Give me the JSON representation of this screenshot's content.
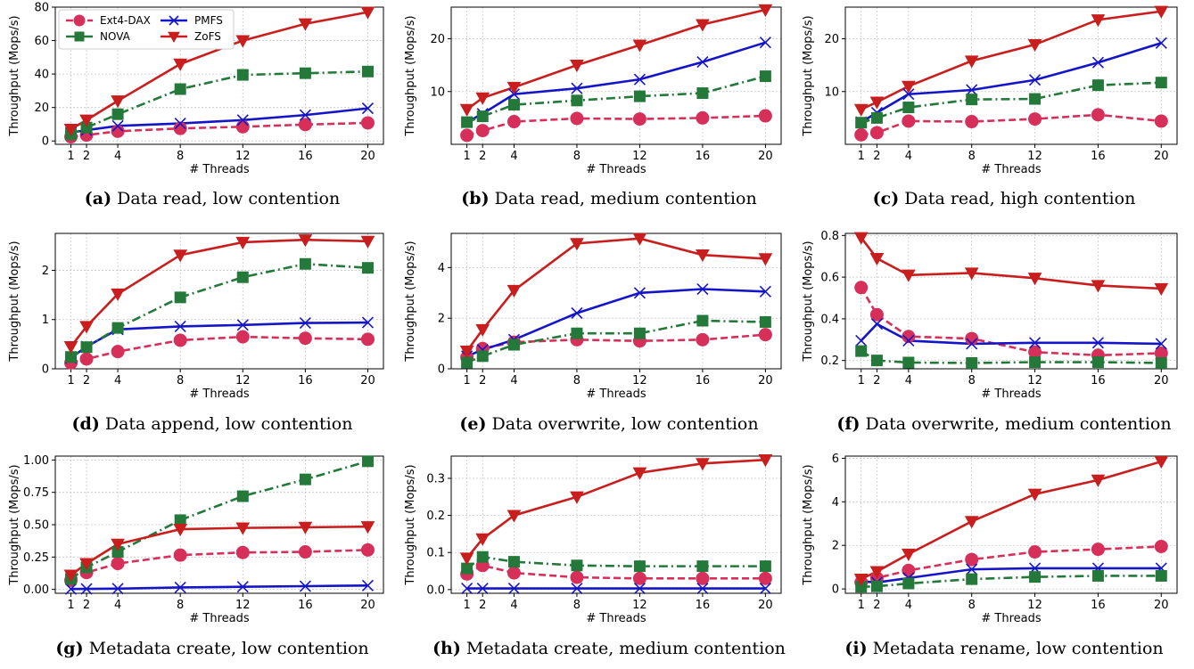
{
  "figure": {
    "series_styles": {
      "Ext4-DAX": {
        "color": "#d6305a",
        "marker": "circle",
        "dash": "8,4",
        "marker_size": 7
      },
      "PMFS": {
        "color": "#1515c8",
        "marker": "x",
        "dash": "",
        "marker_size": 6
      },
      "NOVA": {
        "color": "#24793a",
        "marker": "square",
        "dash": "10,4,2,4",
        "marker_size": 6
      },
      "ZoFS": {
        "color": "#c81e1e",
        "marker": "triangle-down",
        "dash": "",
        "marker_size": 7
      }
    }
  },
  "chart_data": [
    {
      "type": "line",
      "tag": "(a)",
      "caption": "Data read, low contention",
      "xlabel": "# Threads",
      "ylabel": "Throughput (Mops/s)",
      "x": [
        1,
        2,
        4,
        8,
        12,
        16,
        20
      ],
      "xticks": [
        "1",
        "2",
        "4",
        "8",
        "12",
        "16",
        "20"
      ],
      "ylim": [
        -2,
        80
      ],
      "yticks": [
        0,
        20,
        40,
        60,
        80
      ],
      "yticklabels": [
        "0",
        "20",
        "40",
        "60",
        "80"
      ],
      "grid": true,
      "legend": {
        "position": "top-left",
        "columns": 2,
        "entries": [
          "Ext4-DAX",
          "PMFS",
          "NOVA",
          "ZoFS"
        ]
      },
      "series": [
        {
          "name": "Ext4-DAX",
          "values": [
            2.5,
            3.5,
            5.8,
            7.5,
            8.5,
            9.8,
            10.8
          ]
        },
        {
          "name": "PMFS",
          "values": [
            5,
            6.5,
            9,
            10.5,
            12.5,
            15.5,
            19.5
          ]
        },
        {
          "name": "NOVA",
          "values": [
            4,
            8,
            16,
            31,
            39.5,
            40.5,
            41.5
          ]
        },
        {
          "name": "ZoFS",
          "values": [
            7,
            12.5,
            24,
            46,
            60,
            70,
            77
          ]
        }
      ]
    },
    {
      "type": "line",
      "tag": "(b)",
      "caption": "Data read, medium contention",
      "xlabel": "# Threads",
      "ylabel": "Throughput (Mops/s)",
      "x": [
        1,
        2,
        4,
        8,
        12,
        16,
        20
      ],
      "xticks": [
        "1",
        "2",
        "4",
        "8",
        "12",
        "16",
        "20"
      ],
      "ylim": [
        0,
        26
      ],
      "yticks": [
        10,
        20
      ],
      "yticklabels": [
        "10",
        "20"
      ],
      "grid": true,
      "series": [
        {
          "name": "Ext4-DAX",
          "values": [
            1.7,
            2.6,
            4.3,
            4.9,
            4.8,
            5,
            5.4
          ]
        },
        {
          "name": "PMFS",
          "values": [
            4.2,
            5.8,
            9.5,
            10.6,
            12.3,
            15.6,
            19.3
          ]
        },
        {
          "name": "NOVA",
          "values": [
            4.2,
            5.3,
            7.5,
            8.3,
            9.1,
            9.7,
            12.9
          ]
        },
        {
          "name": "ZoFS",
          "values": [
            6.6,
            8.8,
            10.8,
            15,
            18.8,
            22.7,
            25.5
          ]
        }
      ]
    },
    {
      "type": "line",
      "tag": "(c)",
      "caption": "Data read, high contention",
      "xlabel": "# Threads",
      "ylabel": "Throughput (Mops/s)",
      "x": [
        1,
        2,
        4,
        8,
        12,
        16,
        20
      ],
      "xticks": [
        "1",
        "2",
        "4",
        "8",
        "12",
        "16",
        "20"
      ],
      "ylim": [
        0,
        26
      ],
      "yticks": [
        10,
        20
      ],
      "yticklabels": [
        "10",
        "20"
      ],
      "grid": true,
      "series": [
        {
          "name": "Ext4-DAX",
          "values": [
            1.8,
            2.2,
            4.4,
            4.3,
            4.8,
            5.6,
            4.4
          ]
        },
        {
          "name": "PMFS",
          "values": [
            4.2,
            6,
            9.5,
            10.3,
            12.2,
            15.5,
            19.2
          ]
        },
        {
          "name": "NOVA",
          "values": [
            4.1,
            5,
            7,
            8.5,
            8.6,
            11.2,
            11.7
          ]
        },
        {
          "name": "ZoFS",
          "values": [
            6.6,
            8,
            11,
            15.8,
            18.9,
            23.6,
            25.2
          ]
        }
      ]
    },
    {
      "type": "line",
      "tag": "(d)",
      "caption": "Data append, low contention",
      "xlabel": "# Threads",
      "ylabel": "Throughput (Mops/s)",
      "x": [
        1,
        2,
        4,
        8,
        12,
        16,
        20
      ],
      "xticks": [
        "1",
        "2",
        "4",
        "8",
        "12",
        "16",
        "20"
      ],
      "ylim": [
        0,
        2.75
      ],
      "yticks": [
        0,
        1,
        2
      ],
      "yticklabels": [
        "0",
        "1",
        "2"
      ],
      "grid": true,
      "series": [
        {
          "name": "Ext4-DAX",
          "values": [
            0.12,
            0.2,
            0.35,
            0.58,
            0.65,
            0.62,
            0.6
          ]
        },
        {
          "name": "PMFS",
          "values": [
            0.22,
            0.45,
            0.8,
            0.86,
            0.89,
            0.93,
            0.94
          ]
        },
        {
          "name": "NOVA",
          "values": [
            0.24,
            0.44,
            0.83,
            1.45,
            1.86,
            2.13,
            2.05
          ]
        },
        {
          "name": "ZoFS",
          "values": [
            0.45,
            0.86,
            1.52,
            2.31,
            2.57,
            2.62,
            2.59
          ]
        }
      ]
    },
    {
      "type": "line",
      "tag": "(e)",
      "caption": "Data overwrite, low contention",
      "xlabel": "# Threads",
      "ylabel": "Throughput (Mops/s)",
      "x": [
        1,
        2,
        4,
        8,
        12,
        16,
        20
      ],
      "xticks": [
        "1",
        "2",
        "4",
        "8",
        "12",
        "16",
        "20"
      ],
      "ylim": [
        0,
        5.35
      ],
      "yticks": [
        0,
        2,
        4
      ],
      "yticklabels": [
        "0",
        "2",
        "4"
      ],
      "grid": true,
      "series": [
        {
          "name": "Ext4-DAX",
          "values": [
            0.45,
            0.8,
            1.05,
            1.15,
            1.1,
            1.15,
            1.35
          ]
        },
        {
          "name": "PMFS",
          "values": [
            0.5,
            0.75,
            1.15,
            2.2,
            3,
            3.15,
            3.05
          ]
        },
        {
          "name": "NOVA",
          "values": [
            0.25,
            0.5,
            0.95,
            1.4,
            1.4,
            1.9,
            1.85
          ]
        },
        {
          "name": "ZoFS",
          "values": [
            0.7,
            1.55,
            3.1,
            4.95,
            5.15,
            4.5,
            4.35
          ]
        }
      ]
    },
    {
      "type": "line",
      "tag": "(f)",
      "caption": "Data overwrite, medium contention",
      "xlabel": "# Threads",
      "ylabel": "Throughput (Mops/s)",
      "x": [
        1,
        2,
        4,
        8,
        12,
        16,
        20
      ],
      "xticks": [
        "1",
        "2",
        "4",
        "8",
        "12",
        "16",
        "20"
      ],
      "ylim": [
        0.16,
        0.81
      ],
      "yticks": [
        0.2,
        0.4,
        0.6,
        0.8
      ],
      "yticklabels": [
        "0.2",
        "0.4",
        "0.6",
        "0.8"
      ],
      "grid": true,
      "series": [
        {
          "name": "Ext4-DAX",
          "values": [
            0.55,
            0.42,
            0.315,
            0.305,
            0.24,
            0.225,
            0.235
          ]
        },
        {
          "name": "PMFS",
          "values": [
            0.295,
            0.375,
            0.295,
            0.28,
            0.285,
            0.285,
            0.28
          ]
        },
        {
          "name": "NOVA",
          "values": [
            0.245,
            0.2,
            0.19,
            0.188,
            0.192,
            0.192,
            0.188
          ]
        },
        {
          "name": "ZoFS",
          "values": [
            0.79,
            0.69,
            0.61,
            0.62,
            0.595,
            0.56,
            0.545
          ]
        }
      ]
    },
    {
      "type": "line",
      "tag": "(g)",
      "caption": "Metadata create, low contention",
      "xlabel": "# Threads",
      "ylabel": "Throughput (Mops/s)",
      "x": [
        1,
        2,
        4,
        8,
        12,
        16,
        20
      ],
      "xticks": [
        "1",
        "2",
        "4",
        "8",
        "12",
        "16",
        "20"
      ],
      "ylim": [
        -0.03,
        1.03
      ],
      "yticks": [
        0,
        0.25,
        0.5,
        0.75,
        1.0
      ],
      "yticklabels": [
        "0.00",
        "0.25",
        "0.50",
        "0.75",
        "1.00"
      ],
      "grid": true,
      "series": [
        {
          "name": "Ext4-DAX",
          "values": [
            0.07,
            0.13,
            0.2,
            0.265,
            0.285,
            0.29,
            0.305
          ]
        },
        {
          "name": "PMFS",
          "values": [
            0.003,
            0.004,
            0.006,
            0.015,
            0.02,
            0.025,
            0.03
          ]
        },
        {
          "name": "NOVA",
          "values": [
            0.08,
            0.17,
            0.29,
            0.535,
            0.72,
            0.85,
            0.99
          ]
        },
        {
          "name": "ZoFS",
          "values": [
            0.11,
            0.2,
            0.35,
            0.465,
            0.475,
            0.48,
            0.485
          ]
        }
      ]
    },
    {
      "type": "line",
      "tag": "(h)",
      "caption": "Metadata create, medium contention",
      "xlabel": "# Threads",
      "ylabel": "Throughput (Mops/s)",
      "x": [
        1,
        2,
        4,
        8,
        12,
        16,
        20
      ],
      "xticks": [
        "1",
        "2",
        "4",
        "8",
        "12",
        "16",
        "20"
      ],
      "ylim": [
        -0.01,
        0.36
      ],
      "yticks": [
        0,
        0.1,
        0.2,
        0.3
      ],
      "yticklabels": [
        "0.0",
        "0.1",
        "0.2",
        "0.3"
      ],
      "grid": true,
      "series": [
        {
          "name": "Ext4-DAX",
          "values": [
            0.042,
            0.065,
            0.045,
            0.033,
            0.03,
            0.03,
            0.03
          ]
        },
        {
          "name": "PMFS",
          "values": [
            0.003,
            0.003,
            0.003,
            0.003,
            0.003,
            0.003,
            0.003
          ]
        },
        {
          "name": "NOVA",
          "values": [
            0.057,
            0.088,
            0.075,
            0.065,
            0.063,
            0.063,
            0.063
          ]
        },
        {
          "name": "ZoFS",
          "values": [
            0.085,
            0.137,
            0.2,
            0.25,
            0.315,
            0.34,
            0.35
          ]
        }
      ]
    },
    {
      "type": "line",
      "tag": "(i)",
      "caption": "Metadata rename, low contention",
      "xlabel": "# Threads",
      "ylabel": "Throughput (Mops/s)",
      "x": [
        1,
        2,
        4,
        8,
        12,
        16,
        20
      ],
      "xticks": [
        "1",
        "2",
        "4",
        "8",
        "12",
        "16",
        "20"
      ],
      "ylim": [
        -0.2,
        6.1
      ],
      "yticks": [
        0,
        2,
        4,
        6
      ],
      "yticklabels": [
        "0",
        "2",
        "4",
        "6"
      ],
      "grid": true,
      "series": [
        {
          "name": "Ext4-DAX",
          "values": [
            0.3,
            0.5,
            0.85,
            1.35,
            1.7,
            1.82,
            1.95
          ]
        },
        {
          "name": "PMFS",
          "values": [
            0.35,
            0.3,
            0.5,
            0.9,
            0.95,
            0.95,
            0.95
          ]
        },
        {
          "name": "NOVA",
          "values": [
            0.1,
            0.12,
            0.25,
            0.45,
            0.55,
            0.6,
            0.6
          ]
        },
        {
          "name": "ZoFS",
          "values": [
            0.45,
            0.8,
            1.6,
            3.1,
            4.35,
            5.0,
            5.85
          ]
        }
      ]
    }
  ]
}
